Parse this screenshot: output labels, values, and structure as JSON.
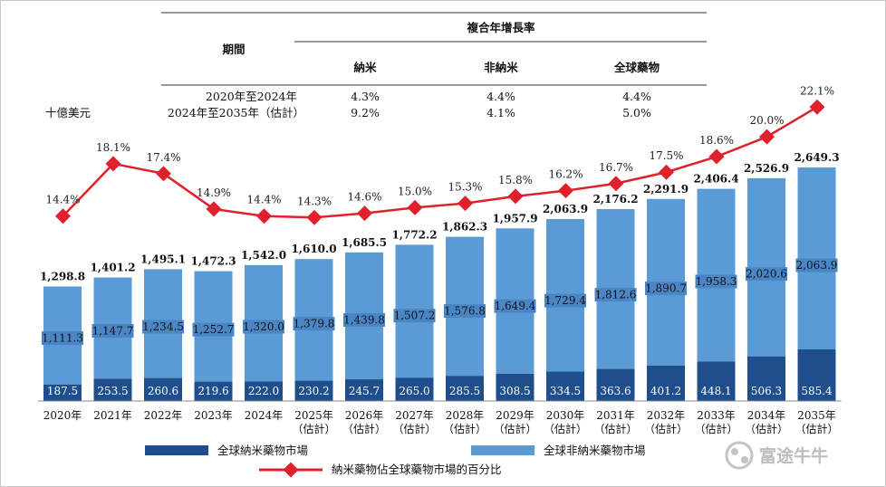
{
  "table": {
    "title": "複合年增長率",
    "period_header": "期間",
    "columns": [
      "納米",
      "非納米",
      "全球藥物"
    ],
    "rows": [
      {
        "period": "2020年至2024年",
        "values": [
          "4.3%",
          "4.4%",
          "4.4%"
        ]
      },
      {
        "period": "2024年至2035年（估計）",
        "values": [
          "9.2%",
          "4.1%",
          "5.0%"
        ]
      }
    ]
  },
  "chart_data": {
    "type": "bar",
    "stacked": true,
    "ylabel": "十億美元",
    "categories": [
      {
        "line1": "2020年",
        "line2": ""
      },
      {
        "line1": "2021年",
        "line2": ""
      },
      {
        "line1": "2022年",
        "line2": ""
      },
      {
        "line1": "2023年",
        "line2": ""
      },
      {
        "line1": "2024年",
        "line2": ""
      },
      {
        "line1": "2025年",
        "line2": "（估計）"
      },
      {
        "line1": "2026年",
        "line2": "（估計）"
      },
      {
        "line1": "2027年",
        "line2": "（估計）"
      },
      {
        "line1": "2028年",
        "line2": "（估計）"
      },
      {
        "line1": "2029年",
        "line2": "（估計）"
      },
      {
        "line1": "2030年",
        "line2": "（估計）"
      },
      {
        "line1": "2031年",
        "line2": "（估計）"
      },
      {
        "line1": "2032年",
        "line2": "（估計）"
      },
      {
        "line1": "2033年",
        "line2": "（估計）"
      },
      {
        "line1": "2034年",
        "line2": "（估計）"
      },
      {
        "line1": "2035年",
        "line2": "（估計）"
      }
    ],
    "series": [
      {
        "name": "全球納米藥物市場",
        "color": "#1f4e8c",
        "values": [
          187.5,
          253.5,
          260.6,
          219.6,
          222.0,
          230.2,
          245.7,
          265.0,
          285.5,
          308.5,
          334.5,
          363.6,
          401.2,
          448.1,
          506.3,
          585.4
        ],
        "labels": [
          "187.5",
          "253.5",
          "260.6",
          "219.6",
          "222.0",
          "230.2",
          "245.7",
          "265.0",
          "285.5",
          "308.5",
          "334.5",
          "363.6",
          "401.2",
          "448.1",
          "506.3",
          "585.4"
        ]
      },
      {
        "name": "全球非納米藥物市場",
        "color": "#5b9bd5",
        "values": [
          1111.3,
          1147.7,
          1234.5,
          1252.7,
          1320.0,
          1379.8,
          1439.8,
          1507.2,
          1576.8,
          1649.4,
          1729.4,
          1812.6,
          1890.7,
          1958.3,
          2020.6,
          2063.9
        ],
        "labels": [
          "1,111.3",
          "1,147.7",
          "1,234.5",
          "1,252.7",
          "1,320.0",
          "1,379.8",
          "1,439.8",
          "1,507.2",
          "1,576.8",
          "1,649.4",
          "1,729.4",
          "1,812.6",
          "1,890.7",
          "1,958.3",
          "2,020.6",
          "2,063.9"
        ]
      }
    ],
    "totals": [
      1298.8,
      1401.2,
      1495.1,
      1472.3,
      1542.0,
      1610.0,
      1685.5,
      1772.2,
      1862.3,
      1957.9,
      2063.9,
      2176.2,
      2291.9,
      2406.4,
      2526.9,
      2649.3
    ],
    "total_labels": [
      "1,298.8",
      "1,401.2",
      "1,495.1",
      "1,472.3",
      "1,542.0",
      "1,610.0",
      "1,685.5",
      "1,772.2",
      "1,862.3",
      "1,957.9",
      "2,063.9",
      "2,176.2",
      "2,291.9",
      "2,406.4",
      "2,526.9",
      "2,649.3"
    ],
    "line_series": {
      "name": "納米藥物佔全球藥物市場的百分比",
      "color": "#e0202a",
      "values": [
        14.4,
        18.1,
        17.4,
        14.9,
        14.4,
        14.3,
        14.6,
        15.0,
        15.3,
        15.8,
        16.2,
        16.7,
        17.5,
        18.6,
        20.0,
        22.1
      ],
      "labels": [
        "14.4%",
        "18.1%",
        "17.4%",
        "14.9%",
        "14.4%",
        "14.3%",
        "14.6%",
        "15.0%",
        "15.3%",
        "15.8%",
        "16.2%",
        "16.7%",
        "17.5%",
        "18.6%",
        "20.0%",
        "22.1%"
      ]
    },
    "ylim": [
      0,
      2700
    ],
    "line_ylim": [
      14.0,
      22.5
    ],
    "grid": false,
    "legend_position": "bottom"
  },
  "watermark": {
    "text": "富途牛牛",
    "icon": "futu-logo-icon",
    "color": "#bdbdbd"
  }
}
